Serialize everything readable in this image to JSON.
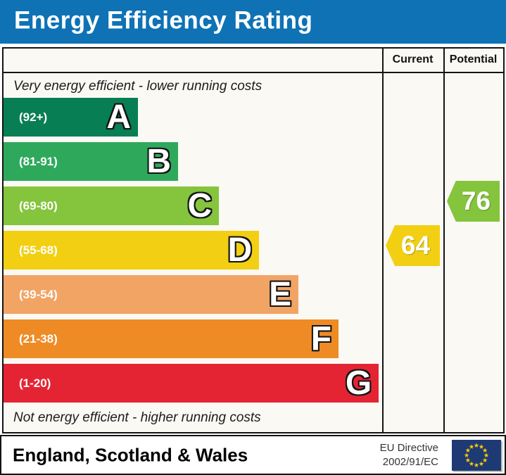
{
  "title": "Energy Efficiency Rating",
  "columns": {
    "current": "Current",
    "potential": "Potential"
  },
  "notes": {
    "top": "Very energy efficient - lower running costs",
    "bottom": "Not energy efficient - higher running costs"
  },
  "footer": {
    "region": "England, Scotland & Wales",
    "directive_line1": "EU Directive",
    "directive_line2": "2002/91/EC"
  },
  "colors": {
    "header_background": "#0e72b5",
    "border": "#141414",
    "chart_background": "#faf9f4",
    "eu_flag_blue": "#1e3a74",
    "eu_star_yellow": "#ffcc00"
  },
  "chart_data": {
    "type": "bar",
    "title": "Energy Efficiency Rating",
    "legend_position": "none",
    "bands": [
      {
        "letter": "A",
        "range_label": "(92+)",
        "min": 92,
        "max": 100,
        "color": "#087e54",
        "bar_length_pct": 35.5
      },
      {
        "letter": "B",
        "range_label": "(81-91)",
        "min": 81,
        "max": 91,
        "color": "#2ea95c",
        "bar_length_pct": 46.1
      },
      {
        "letter": "C",
        "range_label": "(69-80)",
        "min": 69,
        "max": 80,
        "color": "#85c43d",
        "bar_length_pct": 56.9
      },
      {
        "letter": "D",
        "range_label": "(55-68)",
        "min": 55,
        "max": 68,
        "color": "#f2cf13",
        "bar_length_pct": 67.5
      },
      {
        "letter": "E",
        "range_label": "(39-54)",
        "min": 39,
        "max": 54,
        "color": "#f2a465",
        "bar_length_pct": 77.9
      },
      {
        "letter": "F",
        "range_label": "(21-38)",
        "min": 21,
        "max": 38,
        "color": "#ee8b25",
        "bar_length_pct": 88.5
      },
      {
        "letter": "G",
        "range_label": "(1-20)",
        "min": 1,
        "max": 20,
        "color": "#e52433",
        "bar_length_pct": 99.1
      }
    ],
    "current": {
      "value": 64,
      "band": "D",
      "band_index": 3,
      "color": "#f2cf13"
    },
    "potential": {
      "value": 76,
      "band": "C",
      "band_index": 2,
      "color": "#85c43d"
    }
  }
}
